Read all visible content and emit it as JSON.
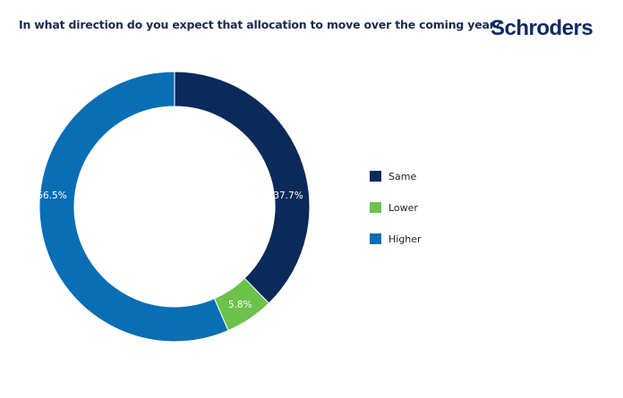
{
  "title": "In what direction do you expect that allocation to move over the coming year?",
  "logo": "Schroders",
  "chart_data": {
    "type": "pie",
    "variant": "donut",
    "title": "In what direction do you expect that allocation to move over the coming year?",
    "categories": [
      "Same",
      "Lower",
      "Higher"
    ],
    "values": [
      37.7,
      5.8,
      56.5
    ],
    "labels": [
      "37.7%",
      "5.8%",
      "56.5%"
    ],
    "colors": [
      "#0b2a5a",
      "#6cc24a",
      "#0a6eb4"
    ],
    "legend_position": "right"
  }
}
